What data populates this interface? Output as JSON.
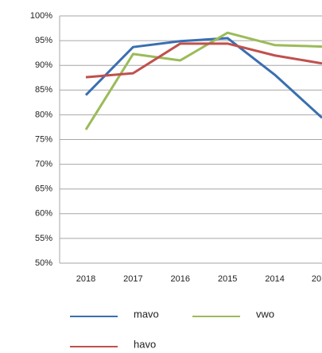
{
  "chart_data": {
    "type": "line",
    "categories": [
      "2018",
      "2017",
      "2016",
      "2015",
      "2014",
      "20"
    ],
    "series": [
      {
        "name": "mavo",
        "color": "#3a6fb0",
        "values": [
          84.0,
          93.7,
          94.9,
          95.5,
          88.1,
          79.4
        ]
      },
      {
        "name": "vwo",
        "color": "#9bbb59",
        "values": [
          77.0,
          92.3,
          91.0,
          96.6,
          94.1,
          93.8
        ]
      },
      {
        "name": "havo",
        "color": "#c0504d",
        "values": [
          87.6,
          88.4,
          94.4,
          94.4,
          92.0,
          90.4
        ]
      }
    ],
    "ylim": [
      50,
      100
    ],
    "yticks": [
      {
        "value": 50,
        "label": "50%"
      },
      {
        "value": 55,
        "label": "55%"
      },
      {
        "value": 60,
        "label": "60%"
      },
      {
        "value": 65,
        "label": "65%"
      },
      {
        "value": 70,
        "label": "70%"
      },
      {
        "value": 75,
        "label": "75%"
      },
      {
        "value": 80,
        "label": "80%"
      },
      {
        "value": 85,
        "label": "85%"
      },
      {
        "value": 90,
        "label": "90%"
      },
      {
        "value": 95,
        "label": "95%"
      },
      {
        "value": 100,
        "label": "100%"
      }
    ],
    "grid": true
  }
}
